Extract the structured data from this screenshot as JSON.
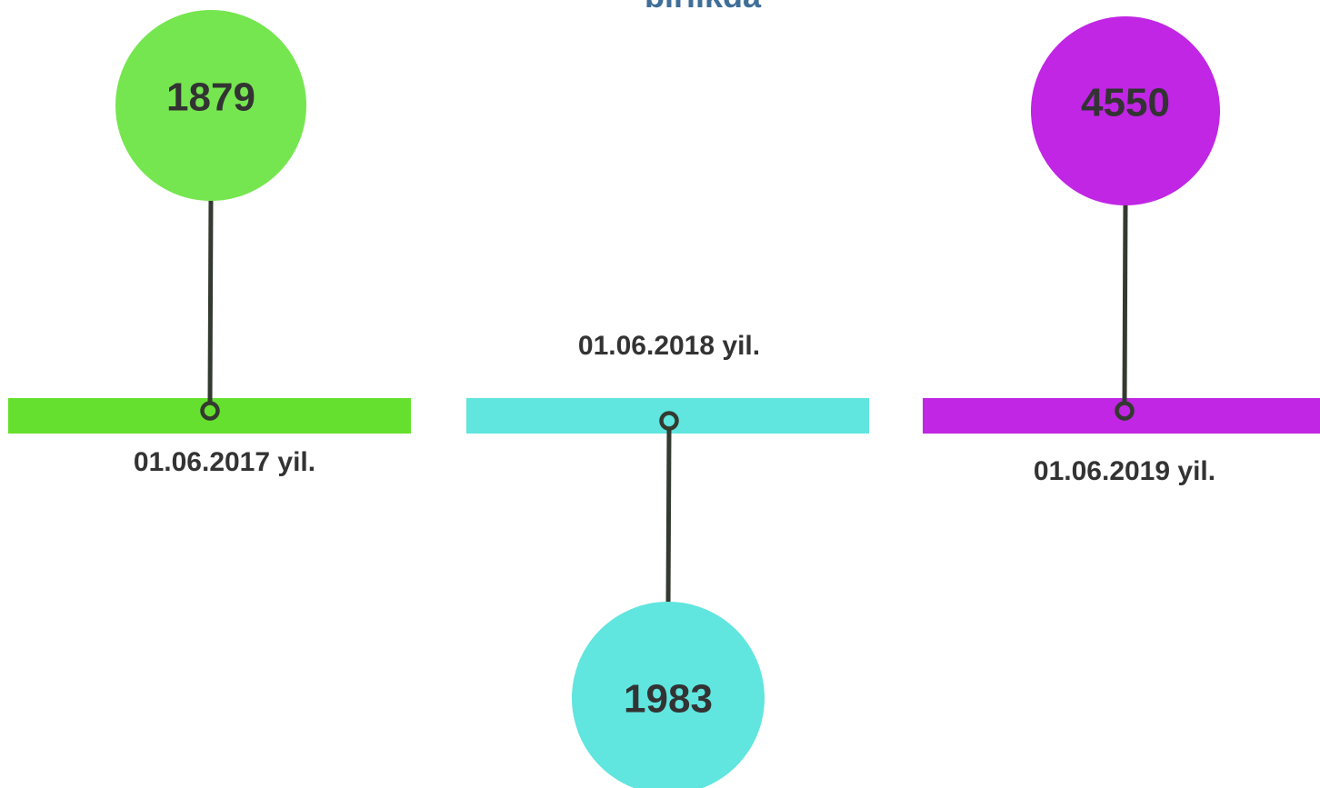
{
  "title": "birlikda",
  "items": [
    {
      "value": 1879,
      "date": "01.06.2017 yil.",
      "color": "#75e64f",
      "bar_color": "#66e02e",
      "position": "above"
    },
    {
      "value": 1983,
      "date": "01.06.2018 yil.",
      "color": "#60e5df",
      "bar_color": "#60e5df",
      "position": "below"
    },
    {
      "value": 4550,
      "date": "01.06.2019 yil.",
      "color": "#c026e4",
      "bar_color": "#c026e4",
      "position": "above"
    }
  ]
}
